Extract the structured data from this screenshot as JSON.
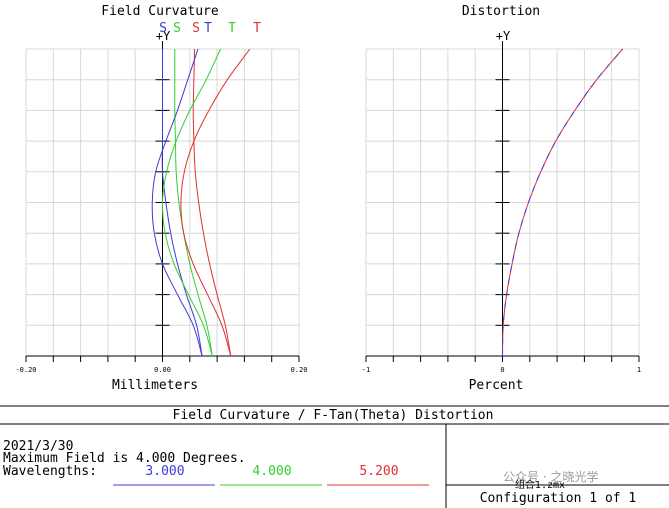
{
  "footer": {
    "title": "Field Curvature / F-Tan(Theta) Distortion",
    "date": "2021/3/30",
    "max_field": "Maximum Field is 4.000 Degrees.",
    "wavelengths_label": "Wavelengths:",
    "wavelengths": [
      {
        "value": "3.000",
        "color": "#3c3cd8"
      },
      {
        "value": "4.000",
        "color": "#30d030"
      },
      {
        "value": "5.200",
        "color": "#e03030"
      }
    ],
    "file": "组合1.zmx",
    "watermark": "公众号 · 之晓光学",
    "configuration": "Configuration 1 of 1"
  },
  "chart_data": [
    {
      "type": "line",
      "title": "Field Curvature",
      "y_axis_label": "+Y",
      "xlabel": "Millimeters",
      "xlim": [
        -0.2,
        0.2
      ],
      "ylim": [
        0,
        1
      ],
      "x_ticks": [
        "-0.20",
        "0.00",
        "0.20"
      ],
      "legend": [
        {
          "text": "S",
          "color": "#3c3cd8"
        },
        {
          "text": "S",
          "color": "#30d030"
        },
        {
          "text": "S",
          "color": "#e03030"
        },
        {
          "text": "T",
          "color": "#3c3cd8"
        },
        {
          "text": "T",
          "color": "#30d030"
        },
        {
          "text": "T",
          "color": "#e03030"
        }
      ],
      "series": [
        {
          "wavelength": "3.000",
          "kind": "S",
          "color": "#3c3cd8",
          "points": [
            [
              0.058,
              0
            ],
            [
              0.05,
              0.1
            ],
            [
              0.035,
              0.2
            ],
            [
              0.022,
              0.3
            ],
            [
              0.012,
              0.4
            ],
            [
              0.005,
              0.5
            ],
            [
              0.0,
              0.6
            ],
            [
              0.0,
              0.7
            ],
            [
              0.0,
              0.8
            ],
            [
              0.0,
              0.9
            ],
            [
              0.0,
              1.0
            ]
          ]
        },
        {
          "wavelength": "4.000",
          "kind": "S",
          "color": "#30d030",
          "points": [
            [
              0.073,
              0
            ],
            [
              0.065,
              0.1
            ],
            [
              0.052,
              0.2
            ],
            [
              0.04,
              0.3
            ],
            [
              0.031,
              0.4
            ],
            [
              0.024,
              0.5
            ],
            [
              0.02,
              0.6
            ],
            [
              0.019,
              0.7
            ],
            [
              0.018,
              0.8
            ],
            [
              0.018,
              0.9
            ],
            [
              0.018,
              1.0
            ]
          ]
        },
        {
          "wavelength": "5.200",
          "kind": "S",
          "color": "#e03030",
          "points": [
            [
              0.1,
              0
            ],
            [
              0.092,
              0.1
            ],
            [
              0.08,
              0.2
            ],
            [
              0.069,
              0.3
            ],
            [
              0.06,
              0.4
            ],
            [
              0.053,
              0.5
            ],
            [
              0.048,
              0.6
            ],
            [
              0.046,
              0.7
            ],
            [
              0.045,
              0.8
            ],
            [
              0.046,
              0.9
            ],
            [
              0.047,
              1.0
            ]
          ]
        },
        {
          "wavelength": "3.000",
          "kind": "T",
          "color": "#3c3cd8",
          "points": [
            [
              0.058,
              0
            ],
            [
              0.045,
              0.1
            ],
            [
              0.022,
              0.2
            ],
            [
              0.0,
              0.3
            ],
            [
              -0.012,
              0.4
            ],
            [
              -0.015,
              0.5
            ],
            [
              -0.01,
              0.6
            ],
            [
              0.005,
              0.7
            ],
            [
              0.022,
              0.8
            ],
            [
              0.037,
              0.9
            ],
            [
              0.052,
              1.0
            ]
          ]
        },
        {
          "wavelength": "4.000",
          "kind": "T",
          "color": "#30d030",
          "points": [
            [
              0.073,
              0
            ],
            [
              0.06,
              0.1
            ],
            [
              0.038,
              0.2
            ],
            [
              0.017,
              0.3
            ],
            [
              0.004,
              0.4
            ],
            [
              0.0,
              0.5
            ],
            [
              0.006,
              0.6
            ],
            [
              0.02,
              0.7
            ],
            [
              0.04,
              0.8
            ],
            [
              0.064,
              0.9
            ],
            [
              0.085,
              1.0
            ]
          ]
        },
        {
          "wavelength": "5.200",
          "kind": "T",
          "color": "#e03030",
          "points": [
            [
              0.1,
              0
            ],
            [
              0.087,
              0.1
            ],
            [
              0.066,
              0.2
            ],
            [
              0.045,
              0.3
            ],
            [
              0.031,
              0.4
            ],
            [
              0.027,
              0.5
            ],
            [
              0.032,
              0.6
            ],
            [
              0.046,
              0.7
            ],
            [
              0.068,
              0.8
            ],
            [
              0.095,
              0.9
            ],
            [
              0.128,
              1.0
            ]
          ]
        }
      ]
    },
    {
      "type": "line",
      "title": "Distortion",
      "y_axis_label": "+Y",
      "xlabel": "Percent",
      "xlim": [
        -1,
        1
      ],
      "ylim": [
        0,
        1
      ],
      "x_ticks": [
        "-1",
        "0",
        "1"
      ],
      "series": [
        {
          "wavelength": "5.200",
          "color": "#e03030",
          "points": [
            [
              0,
              0
            ],
            [
              0.005,
              0.1
            ],
            [
              0.03,
              0.2
            ],
            [
              0.07,
              0.3
            ],
            [
              0.12,
              0.4
            ],
            [
              0.19,
              0.5
            ],
            [
              0.28,
              0.6
            ],
            [
              0.39,
              0.7
            ],
            [
              0.53,
              0.8
            ],
            [
              0.69,
              0.9
            ],
            [
              0.88,
              1.0
            ]
          ]
        },
        {
          "wavelength": "3.000",
          "color": "#3c3cd8",
          "dashed": true,
          "points": [
            [
              0,
              0
            ],
            [
              0.005,
              0.1
            ],
            [
              0.03,
              0.2
            ],
            [
              0.07,
              0.3
            ],
            [
              0.12,
              0.4
            ],
            [
              0.19,
              0.5
            ],
            [
              0.28,
              0.6
            ],
            [
              0.39,
              0.7
            ],
            [
              0.53,
              0.8
            ],
            [
              0.69,
              0.9
            ],
            [
              0.88,
              1.0
            ]
          ]
        }
      ]
    }
  ]
}
